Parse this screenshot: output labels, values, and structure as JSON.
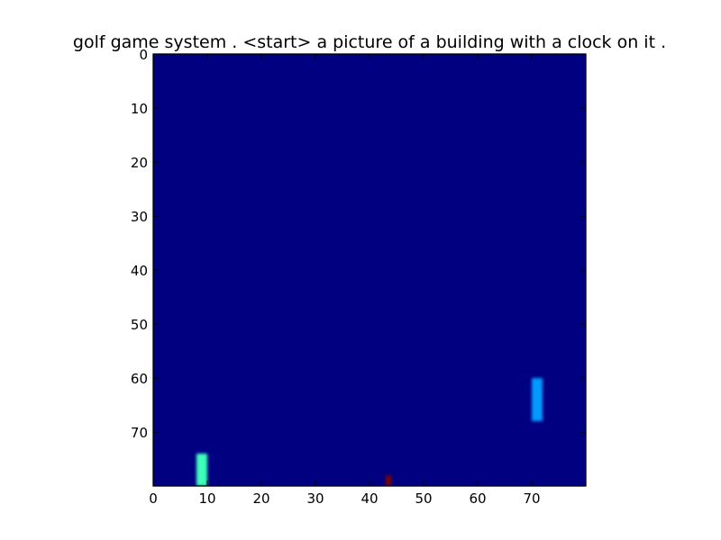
{
  "chart_data": {
    "type": "heatmap",
    "title": "golf game system . <start> a picture of a building with a clock on it .",
    "xlabel": "",
    "ylabel": "",
    "xlim": [
      0,
      80
    ],
    "ylim": [
      80,
      0
    ],
    "xticks": [
      0,
      10,
      20,
      30,
      40,
      50,
      60,
      70
    ],
    "yticks": [
      0,
      10,
      20,
      30,
      40,
      50,
      60,
      70
    ],
    "grid": false,
    "colormap": "jet",
    "background_value": 0.0,
    "background_color": "#000080",
    "blobs": [
      {
        "name": "",
        "x": [
          8,
          10
        ],
        "y": [
          74,
          80
        ],
        "value": 0.45,
        "color": "#3dffba"
      },
      {
        "name": "",
        "x": [
          70,
          72
        ],
        "y": [
          60,
          68
        ],
        "value": 0.3,
        "color": "#0099ff"
      },
      {
        "name": "",
        "x": [
          43,
          44
        ],
        "y": [
          78,
          80
        ],
        "value": 1.0,
        "color": "#800000"
      }
    ]
  }
}
